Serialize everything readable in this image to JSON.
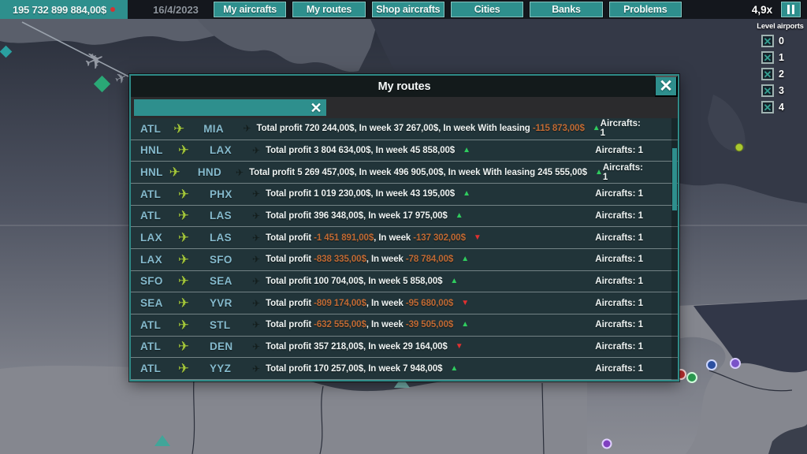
{
  "colors": {
    "teal": "#2e8f8d",
    "topbar_bg": "#14171d",
    "modal_border": "#2f8a87",
    "row_bg": "#213439",
    "code_text": "#85bacd",
    "route_plane": "#a4c83a",
    "negative": "#c06a34",
    "trend_up": "#2fcc5e",
    "trend_down": "#e03030",
    "money_dot": "#d23333"
  },
  "topbar": {
    "money": "195 732 899 884,00$",
    "date": "16/4/2023",
    "buttons": [
      "My aircrafts",
      "My routes",
      "Shop aircrafts",
      "Cities",
      "Banks",
      "Problems"
    ],
    "speed": "4,9x"
  },
  "level_panel": {
    "title": "Level airports",
    "check_icon": "✕",
    "items": [
      {
        "label": "0",
        "checked": true
      },
      {
        "label": "1",
        "checked": true
      },
      {
        "label": "2",
        "checked": true
      },
      {
        "label": "3",
        "checked": true
      },
      {
        "label": "4",
        "checked": true
      }
    ]
  },
  "modal": {
    "title": "My routes",
    "close_icon": "✕",
    "search": {
      "value": "",
      "placeholder": "",
      "clear_icon": "✕"
    },
    "labels": {
      "total_profit": "Total profit",
      "in_week": "In week",
      "with_leasing": "In week With leasing"
    },
    "icons": {
      "plane": "✈",
      "up": "▲",
      "down": "▼"
    },
    "routes": [
      {
        "from": "ATL",
        "to": "MIA",
        "total": "720 244,00$",
        "total_neg": false,
        "week": "37 267,00$",
        "week_neg": false,
        "leasing": "-115 873,00$",
        "leasing_neg": true,
        "trend": "up",
        "aircrafts": "Aircrafts: 1"
      },
      {
        "from": "HNL",
        "to": "LAX",
        "total": "3 804 634,00$",
        "total_neg": false,
        "week": "45 858,00$",
        "week_neg": false,
        "leasing": null,
        "leasing_neg": false,
        "trend": "up",
        "aircrafts": "Aircrafts: 1"
      },
      {
        "from": "HNL",
        "to": "HND",
        "total": "5 269 457,00$",
        "total_neg": false,
        "week": "496 905,00$",
        "week_neg": false,
        "leasing": "245 555,00$",
        "leasing_neg": false,
        "trend": "up",
        "aircrafts": "Aircrafts: 1"
      },
      {
        "from": "ATL",
        "to": "PHX",
        "total": "1 019 230,00$",
        "total_neg": false,
        "week": "43 195,00$",
        "week_neg": false,
        "leasing": null,
        "leasing_neg": false,
        "trend": "up",
        "aircrafts": "Aircrafts: 1"
      },
      {
        "from": "ATL",
        "to": "LAS",
        "total": "396 348,00$",
        "total_neg": false,
        "week": "17 975,00$",
        "week_neg": false,
        "leasing": null,
        "leasing_neg": false,
        "trend": "up",
        "aircrafts": "Aircrafts: 1"
      },
      {
        "from": "LAX",
        "to": "LAS",
        "total": "-1 451 891,00$",
        "total_neg": true,
        "week": "-137 302,00$",
        "week_neg": true,
        "leasing": null,
        "leasing_neg": false,
        "trend": "down",
        "aircrafts": "Aircrafts: 1"
      },
      {
        "from": "LAX",
        "to": "SFO",
        "total": "-838 335,00$",
        "total_neg": true,
        "week": "-78 784,00$",
        "week_neg": true,
        "leasing": null,
        "leasing_neg": false,
        "trend": "up",
        "aircrafts": "Aircrafts: 1"
      },
      {
        "from": "SFO",
        "to": "SEA",
        "total": "100 704,00$",
        "total_neg": false,
        "week": "5 858,00$",
        "week_neg": false,
        "leasing": null,
        "leasing_neg": false,
        "trend": "up",
        "aircrafts": "Aircrafts: 1"
      },
      {
        "from": "SEA",
        "to": "YVR",
        "total": "-809 174,00$",
        "total_neg": true,
        "week": "-95 680,00$",
        "week_neg": true,
        "leasing": null,
        "leasing_neg": false,
        "trend": "down",
        "aircrafts": "Aircrafts: 1"
      },
      {
        "from": "ATL",
        "to": "STL",
        "total": "-632 555,00$",
        "total_neg": true,
        "week": "-39 505,00$",
        "week_neg": true,
        "leasing": null,
        "leasing_neg": false,
        "trend": "up",
        "aircrafts": "Aircrafts: 1"
      },
      {
        "from": "ATL",
        "to": "DEN",
        "total": "357 218,00$",
        "total_neg": false,
        "week": "29 164,00$",
        "week_neg": false,
        "leasing": null,
        "leasing_neg": false,
        "trend": "down",
        "aircrafts": "Aircrafts: 1"
      },
      {
        "from": "ATL",
        "to": "YYZ",
        "total": "170 257,00$",
        "total_neg": false,
        "week": "7 948,00$",
        "week_neg": false,
        "leasing": null,
        "leasing_neg": false,
        "trend": "up",
        "aircrafts": "Aircrafts: 1"
      }
    ]
  }
}
